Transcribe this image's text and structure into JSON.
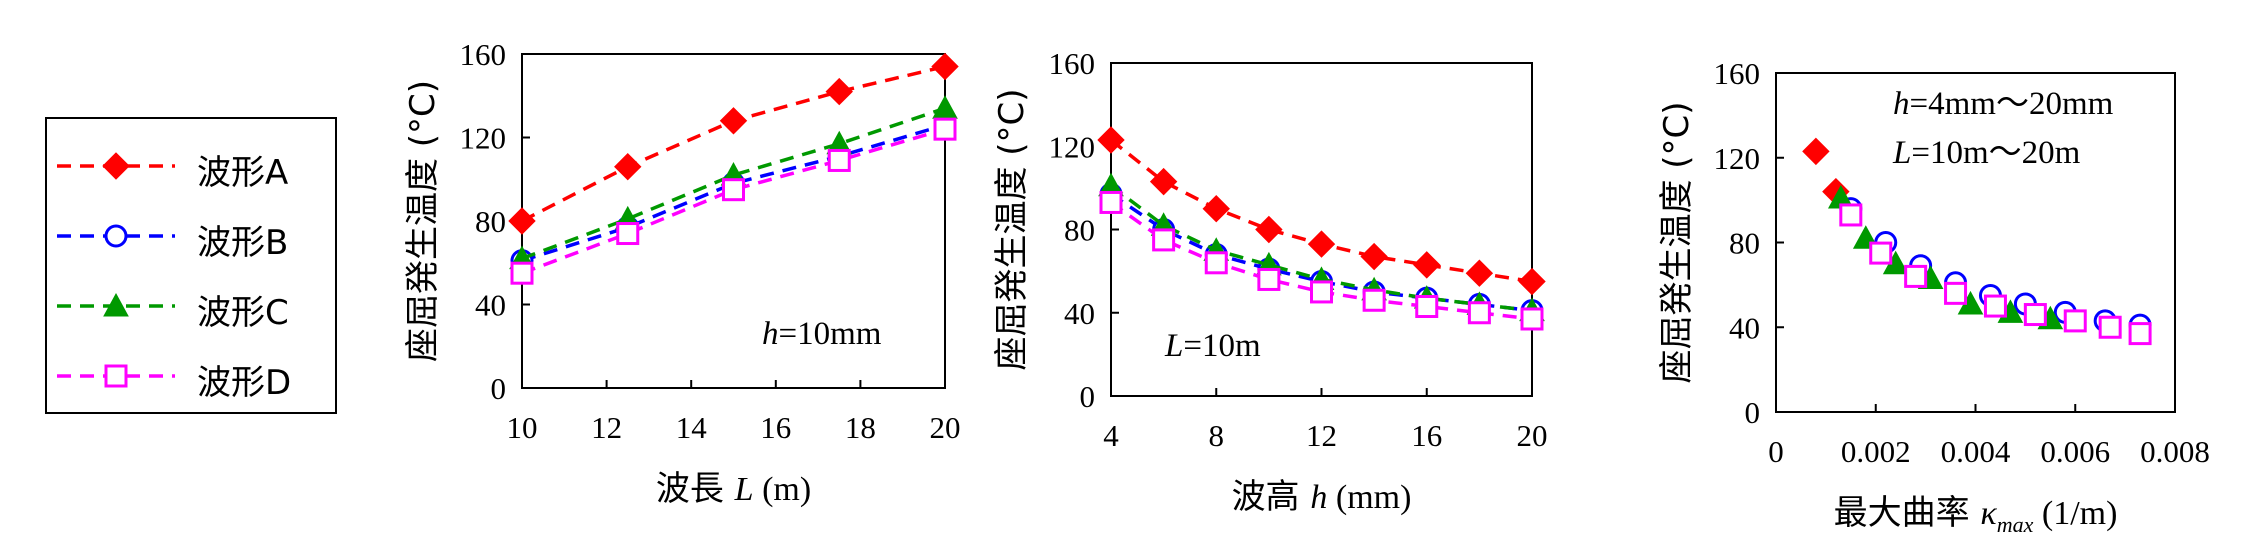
{
  "legend": {
    "items": [
      {
        "label": "波形A",
        "color": "#ff0000",
        "marker": "diamond-filled"
      },
      {
        "label": "波形B",
        "color": "#0000ff",
        "marker": "circle-open"
      },
      {
        "label": "波形C",
        "color": "#009900",
        "marker": "triangle-filled"
      },
      {
        "label": "波形D",
        "color": "#ff00ff",
        "marker": "square-open"
      }
    ]
  },
  "chart_data": [
    {
      "type": "line",
      "ylabel": "座屈発生温度 (°C)",
      "xlabel_text": "波長",
      "xlabel_var": "L",
      "xlabel_unit": " (m)",
      "annotations": [
        "h=10mm"
      ],
      "xlim": [
        10,
        20
      ],
      "ylim": [
        0,
        160
      ],
      "xticks": [
        "10",
        "12",
        "14",
        "16",
        "18",
        "20"
      ],
      "yticks": [
        "0",
        "40",
        "80",
        "120",
        "160"
      ],
      "grid": false,
      "x": [
        10,
        15,
        17.5,
        20,
        12.5
      ],
      "series": [
        {
          "name": "波形A",
          "x": [
            10,
            12.5,
            15,
            17.5,
            20
          ],
          "values": [
            80,
            106,
            128,
            142,
            154
          ]
        },
        {
          "name": "波形B",
          "x": [
            10,
            12.5,
            15,
            17.5,
            20
          ],
          "values": [
            61,
            77,
            98,
            111,
            126
          ]
        },
        {
          "name": "波形C",
          "x": [
            10,
            12.5,
            15,
            17.5,
            20
          ],
          "values": [
            62,
            81,
            102,
            117,
            134
          ]
        },
        {
          "name": "波形D",
          "x": [
            10,
            12.5,
            15,
            17.5,
            20
          ],
          "values": [
            55,
            74,
            95,
            109,
            124
          ]
        }
      ]
    },
    {
      "type": "line",
      "ylabel": "座屈発生温度 (°C)",
      "xlabel_text": "波高",
      "xlabel_var": "h",
      "xlabel_unit": " (mm)",
      "annotations": [
        "L=10m"
      ],
      "xlim": [
        4,
        20
      ],
      "ylim": [
        0,
        160
      ],
      "xticks": [
        "4",
        "8",
        "12",
        "16",
        "20"
      ],
      "yticks": [
        "0",
        "40",
        "80",
        "120",
        "160"
      ],
      "grid": false,
      "series": [
        {
          "name": "波形A",
          "x": [
            4,
            6,
            8,
            10,
            12,
            14,
            16,
            18,
            20
          ],
          "values": [
            123,
            103,
            90,
            80,
            73,
            67,
            63,
            59,
            55
          ]
        },
        {
          "name": "波形B",
          "x": [
            4,
            6,
            8,
            10,
            12,
            14,
            16,
            18,
            20
          ],
          "values": [
            97,
            80,
            68,
            61,
            55,
            50,
            47,
            44,
            41
          ]
        },
        {
          "name": "波形C",
          "x": [
            4,
            6,
            8,
            10,
            12,
            14,
            16,
            18,
            20
          ],
          "values": [
            101,
            82,
            70,
            63,
            56,
            51,
            47,
            44,
            41
          ]
        },
        {
          "name": "波形D",
          "x": [
            4,
            6,
            8,
            10,
            12,
            14,
            16,
            18,
            20
          ],
          "values": [
            93,
            75,
            64,
            56,
            50,
            46,
            43,
            40,
            37
          ]
        }
      ]
    },
    {
      "type": "scatter",
      "ylabel": "座屈発生温度 (°C)",
      "xlabel_text": "最大曲率",
      "xlabel_var": "κ",
      "xlabel_sub": "max",
      "xlabel_unit": " (1/m)",
      "annotations": [
        "h=4mm〜20mm",
        "L=10m〜20m"
      ],
      "xlim": [
        0,
        0.008
      ],
      "ylim": [
        0,
        160
      ],
      "xticks": [
        "0",
        "0.002",
        "0.004",
        "0.006",
        "0.008"
      ],
      "yticks": [
        "0",
        "40",
        "80",
        "120",
        "160"
      ],
      "grid": false,
      "series": [
        {
          "name": "波形A",
          "x": [
            0.0008,
            0.0012
          ],
          "values": [
            123,
            104
          ]
        },
        {
          "name": "波形B",
          "x": [
            0.0015,
            0.0022,
            0.0029,
            0.0036,
            0.0043,
            0.005,
            0.0058,
            0.0066,
            0.0073
          ],
          "values": [
            96,
            80,
            69,
            61,
            55,
            51,
            47,
            43,
            41
          ]
        },
        {
          "name": "波形C",
          "x": [
            0.0013,
            0.0018,
            0.0024,
            0.0031,
            0.0039,
            0.0047,
            0.0055
          ],
          "values": [
            101,
            82,
            70,
            63,
            51,
            47,
            44
          ]
        },
        {
          "name": "波形D",
          "x": [
            0.0015,
            0.0021,
            0.0028,
            0.0036,
            0.0044,
            0.0052,
            0.006,
            0.0067,
            0.0073
          ],
          "values": [
            93,
            75,
            64,
            56,
            50,
            46,
            43,
            40,
            37
          ]
        }
      ]
    }
  ]
}
